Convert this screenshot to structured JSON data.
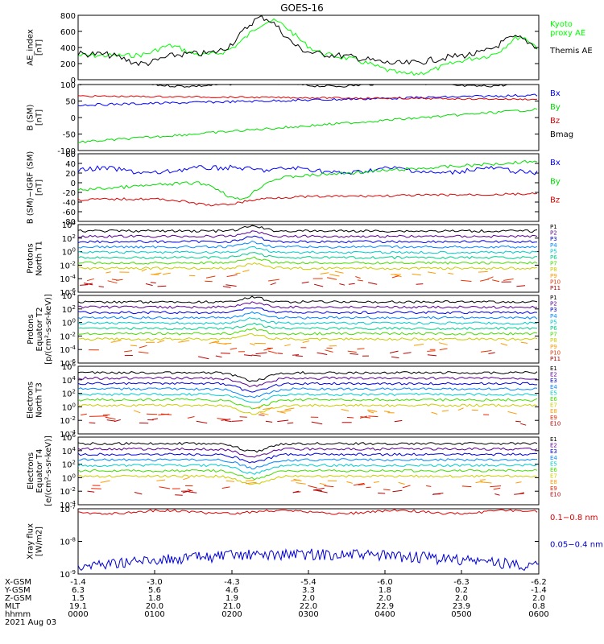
{
  "title": "GOES-16",
  "chart_data": {
    "type": "line",
    "panels": [
      {
        "ylabel": [
          "AE_index",
          "[nT]"
        ],
        "yticks": [
          "800",
          "600",
          "400",
          "200",
          "0"
        ],
        "series": [
          {
            "name": "Kyoto\nproxy AE",
            "color": "#00ff00"
          },
          {
            "name": "Themis AE",
            "color": "#000000"
          }
        ]
      },
      {
        "ylabel": [
          "B (SM)",
          "[nT]"
        ],
        "yticks": [
          "100",
          "50",
          "0",
          "-50",
          "-100"
        ],
        "series": [
          {
            "name": "Bx",
            "color": "#0000ff"
          },
          {
            "name": "By",
            "color": "#00dd00"
          },
          {
            "name": "Bz",
            "color": "#dd0000"
          },
          {
            "name": "Bmag",
            "color": "#000000"
          }
        ]
      },
      {
        "ylabel": [
          "B (SM)−IGRF (SM)",
          "[nT]"
        ],
        "yticks": [
          "60",
          "40",
          "20",
          "0",
          "-20",
          "-40",
          "-60",
          "-80"
        ],
        "series": [
          {
            "name": "Bx",
            "color": "#0000ff"
          },
          {
            "name": "By",
            "color": "#00dd00"
          },
          {
            "name": "Bz",
            "color": "#dd0000"
          }
        ]
      },
      {
        "ylabel": [
          "Protons",
          "North T1"
        ],
        "yticks": [
          "10^4",
          "10^2",
          "10^0",
          "10^-2",
          "10^-4",
          "10^-6"
        ],
        "series": [
          {
            "name": "P1",
            "color": "#000000"
          },
          {
            "name": "P2",
            "color": "#5a0090"
          },
          {
            "name": "P3",
            "color": "#0000dd"
          },
          {
            "name": "P4",
            "color": "#0088ff"
          },
          {
            "name": "P5",
            "color": "#00cccc"
          },
          {
            "name": "P6",
            "color": "#00cc88"
          },
          {
            "name": "P7",
            "color": "#44dd00"
          },
          {
            "name": "P8",
            "color": "#cccc00"
          },
          {
            "name": "P9",
            "color": "#ff9900"
          },
          {
            "name": "P10",
            "color": "#ee3300"
          },
          {
            "name": "P11",
            "color": "#bb0000"
          }
        ]
      },
      {
        "ylabel": [
          "Protons",
          "Equator T2",
          "[p/(cm²-s-sr-keV)]"
        ],
        "yticks": [
          "10^4",
          "10^2",
          "10^0",
          "10^-2",
          "10^-4",
          "10^-6"
        ],
        "series": [
          {
            "name": "P1",
            "color": "#000000"
          },
          {
            "name": "P2",
            "color": "#5a0090"
          },
          {
            "name": "P3",
            "color": "#0000dd"
          },
          {
            "name": "P4",
            "color": "#0088ff"
          },
          {
            "name": "P5",
            "color": "#00cccc"
          },
          {
            "name": "P6",
            "color": "#00cc88"
          },
          {
            "name": "P7",
            "color": "#44dd00"
          },
          {
            "name": "P8",
            "color": "#cccc00"
          },
          {
            "name": "P9",
            "color": "#ff9900"
          },
          {
            "name": "P10",
            "color": "#ee3300"
          },
          {
            "name": "P11",
            "color": "#bb0000"
          }
        ]
      },
      {
        "ylabel": [
          "Electrons",
          "North T3"
        ],
        "yticks": [
          "10^6",
          "10^4",
          "10^2",
          "10^0",
          "10^-2",
          "10^-4"
        ],
        "series": [
          {
            "name": "E1",
            "color": "#000000"
          },
          {
            "name": "E2",
            "color": "#5a0090"
          },
          {
            "name": "E3",
            "color": "#0000dd"
          },
          {
            "name": "E4",
            "color": "#0088ff"
          },
          {
            "name": "E5",
            "color": "#00cccc"
          },
          {
            "name": "E6",
            "color": "#44dd00"
          },
          {
            "name": "E7",
            "color": "#cccc00"
          },
          {
            "name": "E8",
            "color": "#ff9900"
          },
          {
            "name": "E9",
            "color": "#ee2200"
          },
          {
            "name": "E10",
            "color": "#bb0000"
          }
        ]
      },
      {
        "ylabel": [
          "Electrons",
          "Equator T4",
          "[e/(cm²-s-sr-keV)]"
        ],
        "yticks": [
          "10^6",
          "10^4",
          "10^2",
          "10^0",
          "10^-2",
          "10^-4"
        ],
        "series": [
          {
            "name": "E1",
            "color": "#000000"
          },
          {
            "name": "E2",
            "color": "#5a0090"
          },
          {
            "name": "E3",
            "color": "#0000dd"
          },
          {
            "name": "E4",
            "color": "#0088ff"
          },
          {
            "name": "E5",
            "color": "#00cccc"
          },
          {
            "name": "E6",
            "color": "#44dd00"
          },
          {
            "name": "E7",
            "color": "#cccc00"
          },
          {
            "name": "E8",
            "color": "#ff9900"
          },
          {
            "name": "E9",
            "color": "#ee2200"
          },
          {
            "name": "E10",
            "color": "#bb0000"
          }
        ]
      },
      {
        "ylabel": [
          "Xray flux",
          "[W/m2]"
        ],
        "yticks": [
          "10^-7",
          "10^-8",
          "10^-9"
        ],
        "series": [
          {
            "name": "0.1−0.8 nm",
            "color": "#dd0000"
          },
          {
            "name": "0.05−0.4 nm",
            "color": "#0000cc"
          }
        ]
      }
    ],
    "x_axis": {
      "rows": [
        {
          "label": "X-GSM",
          "values": [
            "-1.4",
            "-3.0",
            "-4.3",
            "-5.4",
            "-6.0",
            "-6.3",
            "-6.2"
          ]
        },
        {
          "label": "Y-GSM",
          "values": [
            "6.3",
            "5.6",
            "4.6",
            "3.3",
            "1.8",
            "0.2",
            "-1.4"
          ]
        },
        {
          "label": "Z-GSM",
          "values": [
            "1.5",
            "1.8",
            "1.9",
            "2.0",
            "2.0",
            "2.0",
            "2.0"
          ]
        },
        {
          "label": "MLT",
          "values": [
            "19.1",
            "20.0",
            "21.0",
            "22.0",
            "22.9",
            "23.9",
            "0.8"
          ]
        },
        {
          "label": "hhmm",
          "values": [
            "0000",
            "0100",
            "0200",
            "0300",
            "0400",
            "0500",
            "0600"
          ]
        }
      ],
      "date": "2021 Aug 03"
    }
  }
}
